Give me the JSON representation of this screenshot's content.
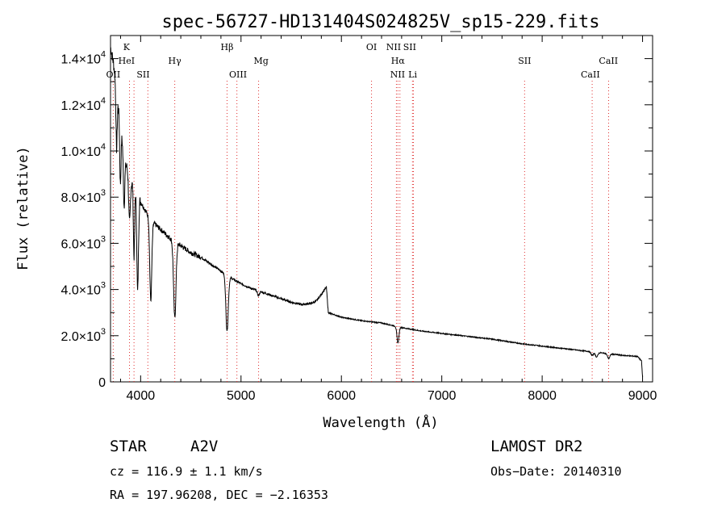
{
  "chart_data": {
    "type": "line",
    "title": "spec-56727-HD131404S024825V_sp15-229.fits",
    "xlabel": "Wavelength (Å)",
    "ylabel": "Flux (relative)",
    "xlim": [
      3700,
      9100
    ],
    "ylim": [
      0,
      15000
    ],
    "xticks": [
      {
        "value": 4000,
        "label": "4000"
      },
      {
        "value": 5000,
        "label": "5000"
      },
      {
        "value": 6000,
        "label": "6000"
      },
      {
        "value": 7000,
        "label": "7000"
      },
      {
        "value": 8000,
        "label": "8000"
      },
      {
        "value": 9000,
        "label": "9000"
      }
    ],
    "yticks": [
      {
        "value": 0,
        "mant": "0",
        "exp": ""
      },
      {
        "value": 2000,
        "mant": "2.0×10",
        "exp": "3"
      },
      {
        "value": 4000,
        "mant": "4.0×10",
        "exp": "3"
      },
      {
        "value": 6000,
        "mant": "6.0×10",
        "exp": "3"
      },
      {
        "value": 8000,
        "mant": "8.0×10",
        "exp": "3"
      },
      {
        "value": 10000,
        "mant": "1.0×10",
        "exp": "4"
      },
      {
        "value": 12000,
        "mant": "1.2×10",
        "exp": "4"
      },
      {
        "value": 14000,
        "mant": "1.4×10",
        "exp": "4"
      }
    ],
    "continuum": [
      [
        3700,
        14500
      ],
      [
        3730,
        13800
      ],
      [
        3760,
        12600
      ],
      [
        3800,
        11000
      ],
      [
        3850,
        9500
      ],
      [
        3900,
        8700
      ],
      [
        3950,
        8300
      ],
      [
        4000,
        7800
      ],
      [
        4100,
        7000
      ],
      [
        4200,
        6600
      ],
      [
        4300,
        6200
      ],
      [
        4400,
        5900
      ],
      [
        4500,
        5600
      ],
      [
        4600,
        5400
      ],
      [
        4700,
        5100
      ],
      [
        4800,
        4800
      ],
      [
        4900,
        4500
      ],
      [
        5000,
        4250
      ],
      [
        5100,
        4050
      ],
      [
        5200,
        3900
      ],
      [
        5300,
        3750
      ],
      [
        5400,
        3600
      ],
      [
        5500,
        3450
      ],
      [
        5600,
        3350
      ],
      [
        5700,
        3400
      ],
      [
        5750,
        3500
      ],
      [
        5800,
        3800
      ],
      [
        5850,
        4100
      ],
      [
        5870,
        3000
      ],
      [
        6000,
        2800
      ],
      [
        6200,
        2650
      ],
      [
        6400,
        2550
      ],
      [
        6500,
        2450
      ],
      [
        6600,
        2350
      ],
      [
        6800,
        2200
      ],
      [
        7000,
        2100
      ],
      [
        7200,
        2000
      ],
      [
        7500,
        1850
      ],
      [
        7800,
        1650
      ],
      [
        8000,
        1550
      ],
      [
        8200,
        1450
      ],
      [
        8400,
        1350
      ],
      [
        8600,
        1250
      ],
      [
        8800,
        1150
      ],
      [
        8950,
        1100
      ],
      [
        8990,
        900
      ],
      [
        9000,
        200
      ]
    ],
    "absorption": [
      {
        "center": 3760,
        "depth": 2500,
        "width": 6
      },
      {
        "center": 3798,
        "depth": 2500,
        "width": 6
      },
      {
        "center": 3835,
        "depth": 2300,
        "width": 7
      },
      {
        "center": 3889,
        "depth": 2000,
        "width": 8
      },
      {
        "center": 3934,
        "depth": 3000,
        "width": 6
      },
      {
        "center": 3970,
        "depth": 4200,
        "width": 8
      },
      {
        "center": 4101,
        "depth": 3500,
        "width": 10
      },
      {
        "center": 4340,
        "depth": 3300,
        "width": 12
      },
      {
        "center": 4861,
        "depth": 2400,
        "width": 12
      },
      {
        "center": 5173,
        "depth": 200,
        "width": 10
      },
      {
        "center": 6563,
        "depth": 700,
        "width": 10
      },
      {
        "center": 8498,
        "depth": 150,
        "width": 12
      },
      {
        "center": 8542,
        "depth": 200,
        "width": 12
      },
      {
        "center": 8662,
        "depth": 200,
        "width": 12
      }
    ],
    "line_markers": [
      {
        "label": "OII",
        "wavelength": 3727,
        "row": 3,
        "label_wl": 3727
      },
      {
        "label": "K",
        "wavelength": 3934,
        "row": 1,
        "label_wl": 3860
      },
      {
        "label": "HeI",
        "wavelength": 3889,
        "row": 2,
        "label_wl": 3860
      },
      {
        "label": "SII",
        "wavelength": 4072,
        "row": 3,
        "label_wl": 4025
      },
      {
        "label": "Hγ",
        "wavelength": 4340,
        "row": 2,
        "label_wl": 4340
      },
      {
        "label": "Hβ",
        "wavelength": 4861,
        "row": 1,
        "label_wl": 4861
      },
      {
        "label": "OIII",
        "wavelength": 4959,
        "row": 3,
        "label_wl": 4970
      },
      {
        "label": "Mg",
        "wavelength": 5175,
        "row": 2,
        "label_wl": 5200
      },
      {
        "label": "OI",
        "wavelength": 6300,
        "row": 1,
        "label_wl": 6300
      },
      {
        "label": "NII",
        "wavelength": 6548,
        "row": 1,
        "label_wl": 6520
      },
      {
        "label": "SII",
        "wavelength": 6717,
        "row": 1,
        "label_wl": 6680
      },
      {
        "label": "Hα",
        "wavelength": 6563,
        "row": 2,
        "label_wl": 6563
      },
      {
        "label": "NII",
        "wavelength": 6583,
        "row": 3,
        "label_wl": 6560
      },
      {
        "label": "Li",
        "wavelength": 6708,
        "row": 3,
        "label_wl": 6710
      },
      {
        "label": "SII",
        "wavelength": 7825,
        "row": 2,
        "label_wl": 7825
      },
      {
        "label": "CaII",
        "wavelength": 8662,
        "row": 2,
        "label_wl": 8660
      },
      {
        "label": "CaII",
        "wavelength": 8498,
        "row": 3,
        "label_wl": 8480
      }
    ]
  },
  "info": {
    "class_label": "STAR",
    "subclass": "A2V",
    "cz": "cz = 116.9 ± 1.1 km/s",
    "coords": "RA = 197.96208, DEC =  −2.16353",
    "survey": "LAMOST DR2",
    "obs_date": "Obs−Date: 20140310"
  }
}
